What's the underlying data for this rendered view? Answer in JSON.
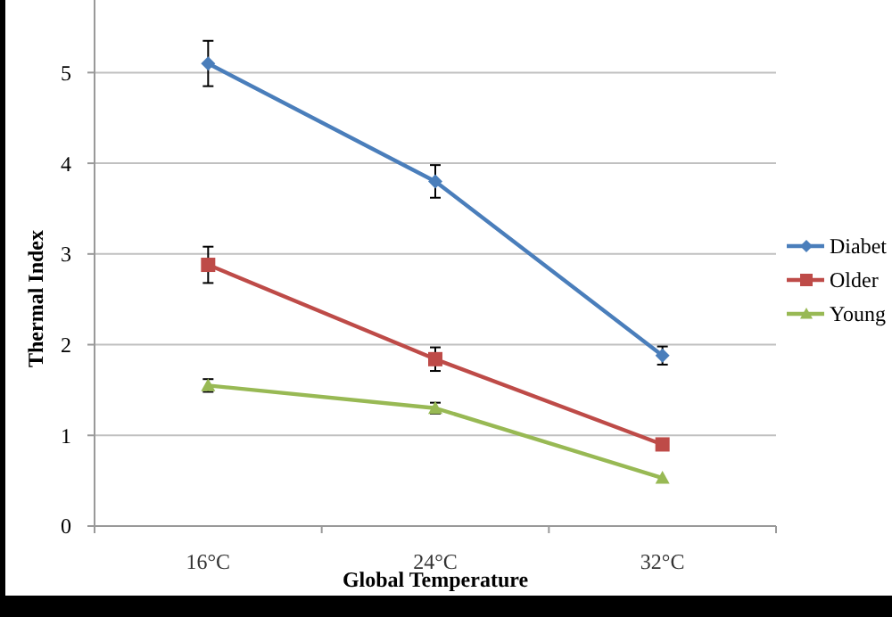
{
  "chart_data": {
    "type": "line",
    "xlabel": "Global Temperature",
    "ylabel": "Thermal Index",
    "categories": [
      "16°C",
      "24°C",
      "32°C"
    ],
    "series": [
      {
        "name": "Diabet",
        "color": "#4a7ebb",
        "values": [
          5.1,
          3.8,
          1.88
        ],
        "errors": [
          0.25,
          0.18,
          0.1
        ],
        "marker": "diamond"
      },
      {
        "name": "Older",
        "color": "#be4b48",
        "values": [
          2.88,
          1.84,
          0.9
        ],
        "errors": [
          0.2,
          0.13,
          null
        ],
        "marker": "square"
      },
      {
        "name": "Young",
        "color": "#98b954",
        "values": [
          1.55,
          1.3,
          0.53
        ],
        "errors": [
          0.07,
          0.06,
          null
        ],
        "marker": "triangle"
      }
    ],
    "ylim": [
      0,
      5.8
    ],
    "yticks": [
      0,
      1,
      2,
      3,
      4,
      5
    ],
    "grid": "y",
    "legend": "right"
  }
}
